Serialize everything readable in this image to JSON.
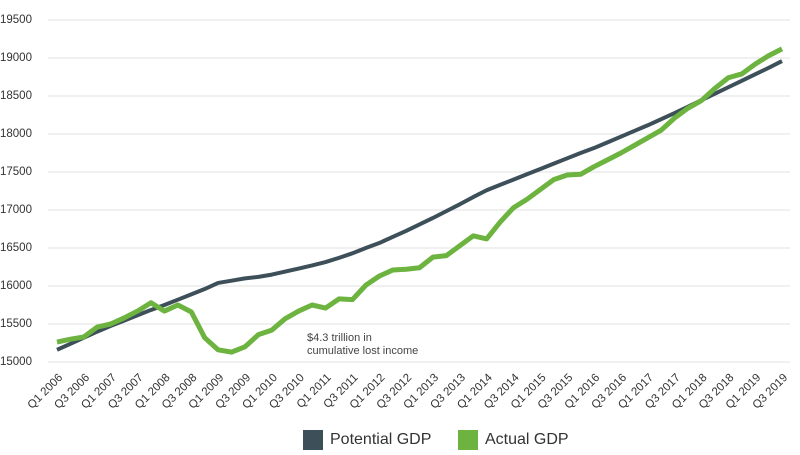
{
  "chart_data": {
    "type": "line",
    "categories": [
      "Q1 2006",
      null,
      "Q3 2006",
      null,
      "Q1 2007",
      null,
      "Q3 2007",
      null,
      "Q1 2008",
      null,
      "Q3 2008",
      null,
      "Q1 2009",
      null,
      "Q3 2009",
      null,
      "Q1 2010",
      null,
      "Q3 2010",
      null,
      "Q1 2011",
      null,
      "Q3 2011",
      null,
      "Q1 2012",
      null,
      "Q3 2012",
      null,
      "Q1 2013",
      null,
      "Q3 2013",
      null,
      "Q1 2014",
      null,
      "Q3 2014",
      null,
      "Q1 2015",
      null,
      "Q3 2015",
      null,
      "Q1 2016",
      null,
      "Q3 2016",
      null,
      "Q1 2017",
      null,
      "Q3 2017",
      null,
      "Q1 2018",
      null,
      "Q3 2018",
      null,
      "Q1 2019",
      null,
      "Q3 2019"
    ],
    "series": [
      {
        "name": "Potential GDP",
        "color": "#3d505a",
        "values": [
          15160,
          15240,
          15320,
          15400,
          15475,
          15545,
          15615,
          15685,
          15750,
          15820,
          15890,
          15960,
          16040,
          16070,
          16100,
          16120,
          16150,
          16190,
          16230,
          16270,
          16315,
          16370,
          16430,
          16500,
          16565,
          16645,
          16725,
          16810,
          16895,
          16985,
          17075,
          17170,
          17260,
          17330,
          17400,
          17470,
          17540,
          17610,
          17680,
          17750,
          17815,
          17890,
          17965,
          18040,
          18115,
          18195,
          18275,
          18360,
          18445,
          18530,
          18615,
          18700,
          18785,
          18870,
          18960
        ]
      },
      {
        "name": "Actual GDP",
        "color": "#6db33f",
        "values": [
          15263,
          15300,
          15330,
          15460,
          15500,
          15580,
          15670,
          15780,
          15670,
          15750,
          15660,
          15320,
          15160,
          15130,
          15200,
          15360,
          15420,
          15570,
          15670,
          15750,
          15710,
          15830,
          15820,
          16010,
          16130,
          16210,
          16220,
          16240,
          16380,
          16400,
          16530,
          16660,
          16620,
          16840,
          17030,
          17140,
          17270,
          17400,
          17460,
          17470,
          17570,
          17660,
          17750,
          17850,
          17950,
          18050,
          18210,
          18340,
          18440,
          18600,
          18740,
          18790,
          18920,
          19030,
          19120
        ]
      }
    ],
    "annotation": [
      "$4.3 trillion in",
      "cumulative lost income"
    ],
    "ylim": [
      15000,
      19500
    ],
    "yticks": [
      15000,
      15500,
      16000,
      16500,
      17000,
      17500,
      18000,
      18500,
      19000,
      19500
    ],
    "grid": true,
    "legend": "bottom"
  }
}
